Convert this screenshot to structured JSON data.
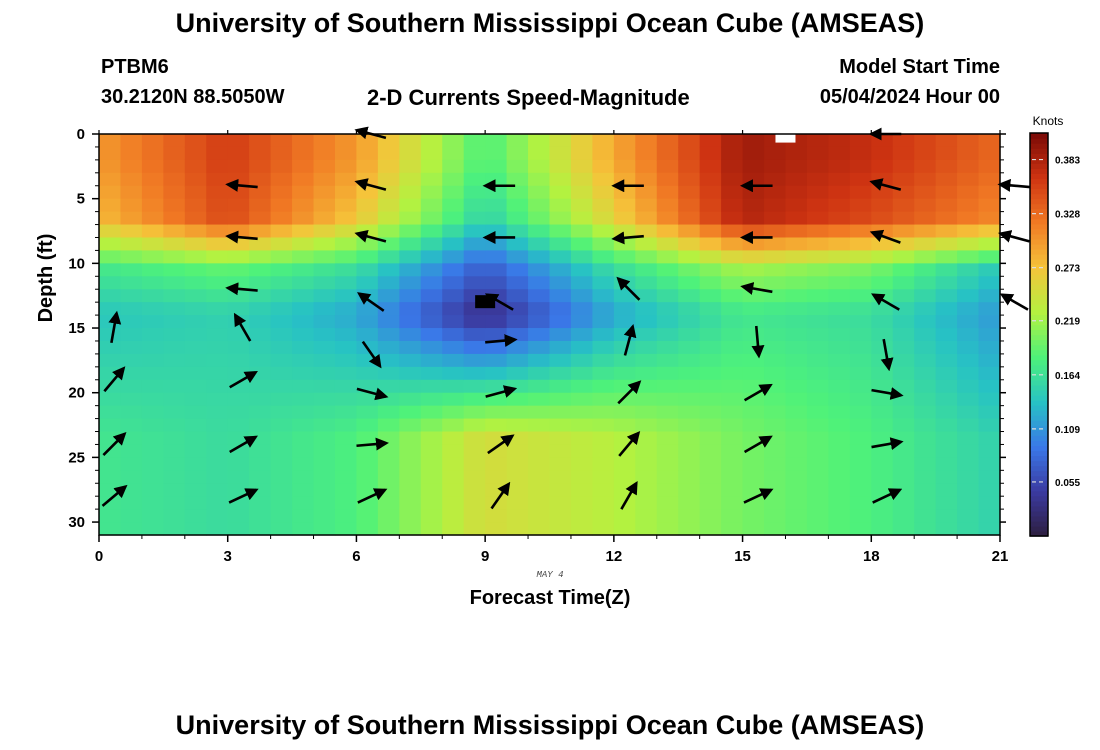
{
  "header": {
    "title": "University of Southern Mississippi Ocean Cube (AMSEAS)",
    "station": "PTBM6",
    "coords": "30.2120N  88.5050W",
    "plot_title": "2-D Currents Speed-Magnitude",
    "model_start_label": "Model Start Time",
    "model_start_value": "05/04/2024 Hour 00",
    "footer_title": "University of Southern Mississippi Ocean Cube (AMSEAS)"
  },
  "chart_data": {
    "type": "heatmap",
    "title": "2-D Currents Speed-Magnitude",
    "xlabel": "Forecast Time(Z)",
    "ylabel": "Depth (ft)",
    "date_label": "MAY 4",
    "x_ticks": [
      0,
      3,
      6,
      9,
      12,
      15,
      18,
      21
    ],
    "y_ticks": [
      0,
      5,
      10,
      15,
      20,
      25,
      30
    ],
    "xlim": [
      0,
      21
    ],
    "ylim": [
      0,
      31
    ],
    "y_inverted": true,
    "colorbar": {
      "unit": "Knots",
      "ticks": [
        0.383,
        0.328,
        0.273,
        0.219,
        0.164,
        0.109,
        0.055
      ],
      "range": [
        0.0,
        0.41
      ],
      "colors": [
        "#2d1e3e",
        "#3b3aa0",
        "#3a78e8",
        "#27c2c4",
        "#4ef27a",
        "#b4f240",
        "#f5c43a",
        "#f17a24",
        "#cf3412",
        "#7a0a06"
      ]
    },
    "speed_knots": [
      {
        "forecast_hour": 0,
        "0-4": 0.3,
        "4-9": 0.28,
        "9-12": 0.17,
        "12-16": 0.14,
        "16-31": 0.17
      },
      {
        "forecast_hour": 3,
        "0-4": 0.36,
        "4-9": 0.35,
        "9-12": 0.19,
        "12-16": 0.15,
        "16-31": 0.16
      },
      {
        "forecast_hour": 6,
        "0-4": 0.3,
        "4-9": 0.27,
        "9-12": 0.16,
        "12-16": 0.12,
        "16-31": 0.18
      },
      {
        "forecast_hour": 9,
        "0-4": 0.18,
        "4-9": 0.15,
        "9-12": 0.07,
        "12-16": 0.03,
        "16-31": 0.25
      },
      {
        "forecast_hour": 12,
        "0-4": 0.29,
        "4-9": 0.26,
        "9-12": 0.16,
        "12-16": 0.12,
        "16-31": 0.23
      },
      {
        "forecast_hour": 15,
        "0-4": 0.39,
        "4-9": 0.38,
        "9-12": 0.22,
        "12-16": 0.17,
        "16-31": 0.2
      },
      {
        "forecast_hour": 18,
        "0-4": 0.37,
        "4-9": 0.35,
        "9-12": 0.2,
        "12-16": 0.16,
        "16-31": 0.18
      },
      {
        "forecast_hour": 21,
        "0-4": 0.33,
        "4-9": 0.31,
        "9-12": 0.14,
        "12-16": 0.11,
        "16-31": 0.15
      }
    ],
    "current_vectors": [
      {
        "x": 0,
        "depth": 15,
        "direction_deg": 10
      },
      {
        "x": 0,
        "depth": 19,
        "direction_deg": 40
      },
      {
        "x": 0,
        "depth": 24,
        "direction_deg": 45
      },
      {
        "x": 0,
        "depth": 28,
        "direction_deg": 50
      },
      {
        "x": 3,
        "depth": 4,
        "direction_deg": 275
      },
      {
        "x": 3,
        "depth": 8,
        "direction_deg": 275
      },
      {
        "x": 3,
        "depth": 12,
        "direction_deg": 275
      },
      {
        "x": 3,
        "depth": 15,
        "direction_deg": 330
      },
      {
        "x": 3,
        "depth": 19,
        "direction_deg": 60
      },
      {
        "x": 3,
        "depth": 24,
        "direction_deg": 60
      },
      {
        "x": 3,
        "depth": 28,
        "direction_deg": 65
      },
      {
        "x": 6,
        "depth": 0,
        "direction_deg": 285
      },
      {
        "x": 6,
        "depth": 4,
        "direction_deg": 285
      },
      {
        "x": 6,
        "depth": 8,
        "direction_deg": 285
      },
      {
        "x": 6,
        "depth": 13,
        "direction_deg": 305
      },
      {
        "x": 6,
        "depth": 17,
        "direction_deg": 145
      },
      {
        "x": 6,
        "depth": 20,
        "direction_deg": 105
      },
      {
        "x": 6,
        "depth": 24,
        "direction_deg": 85
      },
      {
        "x": 6,
        "depth": 28,
        "direction_deg": 65
      },
      {
        "x": 9,
        "depth": 4,
        "direction_deg": 270
      },
      {
        "x": 9,
        "depth": 8,
        "direction_deg": 270
      },
      {
        "x": 9,
        "depth": 13,
        "direction_deg": 300
      },
      {
        "x": 9,
        "depth": 16,
        "direction_deg": 85
      },
      {
        "x": 9,
        "depth": 20,
        "direction_deg": 75
      },
      {
        "x": 9,
        "depth": 24,
        "direction_deg": 55
      },
      {
        "x": 9,
        "depth": 28,
        "direction_deg": 35
      },
      {
        "x": 12,
        "depth": 4,
        "direction_deg": 270
      },
      {
        "x": 12,
        "depth": 8,
        "direction_deg": 265
      },
      {
        "x": 12,
        "depth": 12,
        "direction_deg": 315
      },
      {
        "x": 12,
        "depth": 16,
        "direction_deg": 15
      },
      {
        "x": 12,
        "depth": 20,
        "direction_deg": 45
      },
      {
        "x": 12,
        "depth": 24,
        "direction_deg": 40
      },
      {
        "x": 12,
        "depth": 28,
        "direction_deg": 30
      },
      {
        "x": 15,
        "depth": 4,
        "direction_deg": 270
      },
      {
        "x": 15,
        "depth": 8,
        "direction_deg": 270
      },
      {
        "x": 15,
        "depth": 12,
        "direction_deg": 280
      },
      {
        "x": 15,
        "depth": 16,
        "direction_deg": 175
      },
      {
        "x": 15,
        "depth": 20,
        "direction_deg": 60
      },
      {
        "x": 15,
        "depth": 24,
        "direction_deg": 60
      },
      {
        "x": 15,
        "depth": 28,
        "direction_deg": 65
      },
      {
        "x": 18,
        "depth": 0,
        "direction_deg": 270
      },
      {
        "x": 18,
        "depth": 4,
        "direction_deg": 285
      },
      {
        "x": 18,
        "depth": 8,
        "direction_deg": 290
      },
      {
        "x": 18,
        "depth": 13,
        "direction_deg": 300
      },
      {
        "x": 18,
        "depth": 17,
        "direction_deg": 170
      },
      {
        "x": 18,
        "depth": 20,
        "direction_deg": 100
      },
      {
        "x": 18,
        "depth": 24,
        "direction_deg": 80
      },
      {
        "x": 18,
        "depth": 28,
        "direction_deg": 65
      },
      {
        "x": 21,
        "depth": 4,
        "direction_deg": 275
      },
      {
        "x": 21,
        "depth": 8,
        "direction_deg": 285
      },
      {
        "x": 21,
        "depth": 13,
        "direction_deg": 300
      }
    ],
    "markers": [
      {
        "label": "no-data",
        "x": 16.0,
        "depth": 0.2,
        "color": "#ffffff"
      },
      {
        "label": "no-data",
        "x": 9.0,
        "depth": 13.0,
        "color": "#000000"
      }
    ]
  }
}
